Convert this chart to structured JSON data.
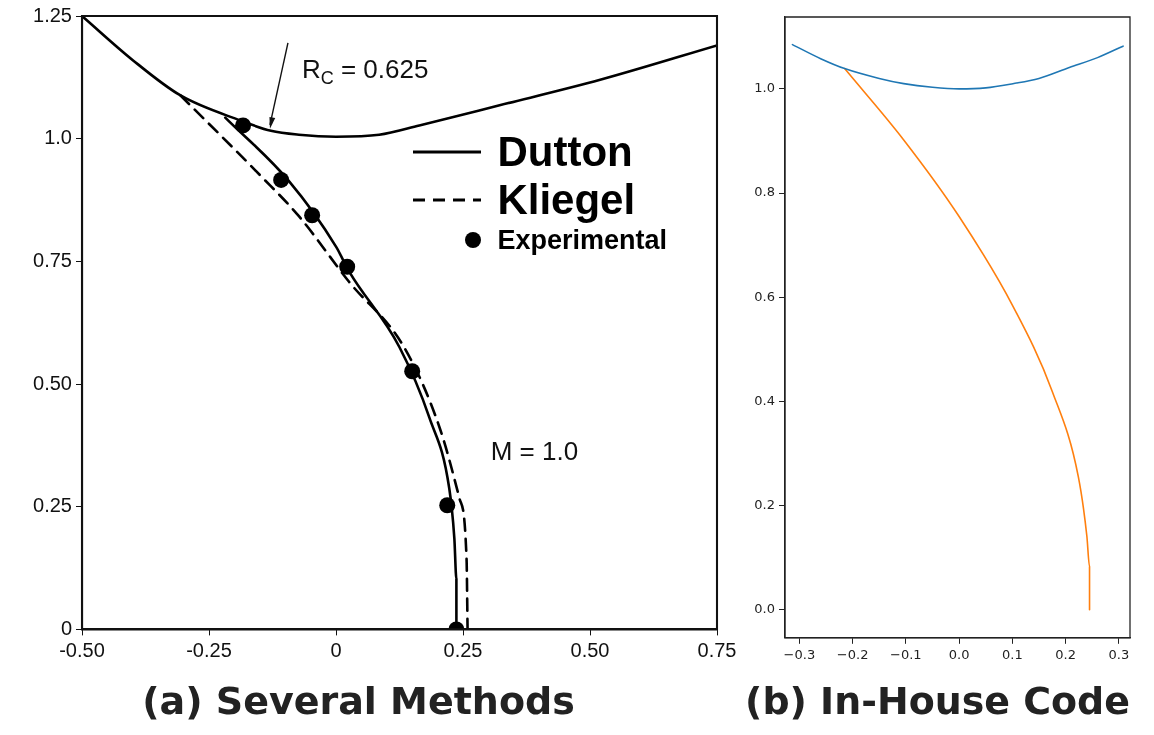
{
  "chart_data": [
    {
      "type": "line",
      "title": "(a) Several Methods",
      "xlim": [
        -0.5,
        0.75
      ],
      "ylim": [
        0,
        1.25
      ],
      "xticks": [
        {
          "value": -0.5,
          "label": "-0.50"
        },
        -0.25,
        0,
        0.25,
        {
          "value": 0.5,
          "label": "0.50"
        },
        0.75
      ],
      "yticks": [
        0,
        0.25,
        {
          "value": 0.5,
          "label": "0.50"
        },
        0.75,
        {
          "value": 1,
          "label": "1.0"
        },
        1.25
      ],
      "legend": "top right",
      "series": [
        {
          "color": "#000000",
          "line_style": "solid",
          "x": [
            -0.5,
            -0.4,
            -0.306,
            -0.188,
            -0.128,
            -0.073,
            0,
            0.085,
            0.164,
            0.322,
            0.52,
            0.75
          ],
          "values": [
            1.25,
            1.16,
            1.088,
            1.037,
            1.016,
            1.008,
            1.004,
            1.008,
            1.027,
            1.068,
            1.12,
            1.19
          ]
        },
        {
          "name": "Dutton",
          "color": "#000000",
          "line_style": "solid",
          "x": [
            -0.218,
            -0.093,
            0,
            0.026,
            0.125,
            0.184,
            0.223,
            0.233,
            0.237,
            0.237
          ],
          "values": [
            1.043,
            0.914,
            0.78,
            0.729,
            0.575,
            0.431,
            0.287,
            0.185,
            0.103,
            0
          ]
        },
        {
          "name": "Kliegel",
          "color": "#000000",
          "line_style": "dashed",
          "x": [
            -0.306,
            -0.148,
            -0.073,
            0.026,
            0.134,
            0.204,
            0.243,
            0.257,
            0.259
          ],
          "values": [
            1.088,
            0.924,
            0.842,
            0.708,
            0.575,
            0.411,
            0.267,
            0.144,
            0
          ]
        },
        {
          "name": "Experimental",
          "type": "scatter",
          "color": "#000000",
          "marker": "circle",
          "x": [
            -0.183,
            -0.108,
            -0.047,
            0.022,
            0.15,
            0.219,
            0.237
          ],
          "values": [
            1.027,
            0.916,
            0.844,
            0.739,
            0.526,
            0.253,
            0
          ]
        }
      ],
      "annotations": [
        {
          "text": "R$_{C}$ = 0.625",
          "x": -0.13,
          "y": 1.02
        },
        {
          "text": "M = 1.0",
          "x": 0.21,
          "y": 0.36
        }
      ]
    },
    {
      "type": "line",
      "title": "(b) In-House Code",
      "xlim": [
        -0.327,
        0.321
      ],
      "ylim": [
        -0.054,
        1.138
      ],
      "xticks": [
        {
          "value": -0.3,
          "label": "−0.3"
        },
        {
          "value": -0.2,
          "label": "−0.2"
        },
        {
          "value": -0.1,
          "label": "−0.1"
        },
        {
          "value": 0,
          "label": "0.0"
        },
        0.1,
        0.2,
        0.3
      ],
      "yticks": [
        {
          "value": 0,
          "label": "0.0"
        },
        0.2,
        0.4,
        0.6,
        0.8,
        {
          "value": 1,
          "label": "1.0"
        }
      ],
      "series": [
        {
          "color": "#1f77b4",
          "x": [
            -0.313,
            -0.26,
            -0.215,
            -0.15,
            -0.104,
            -0.05,
            0,
            0.05,
            0.101,
            0.15,
            0.207,
            0.26,
            0.308
          ],
          "values": [
            1.085,
            1.058,
            1.039,
            1.02,
            1.01,
            1.003,
            1.0,
            1.002,
            1.01,
            1.02,
            1.041,
            1.06,
            1.082
          ]
        },
        {
          "color": "#ff7f0e",
          "x": [
            -0.215,
            -0.104,
            0,
            0.101,
            0.175,
            0.224,
            0.24,
            0.245,
            0.245
          ],
          "values": [
            1.039,
            0.902,
            0.755,
            0.583,
            0.419,
            0.255,
            0.141,
            0.083,
            0
          ]
        }
      ]
    }
  ]
}
